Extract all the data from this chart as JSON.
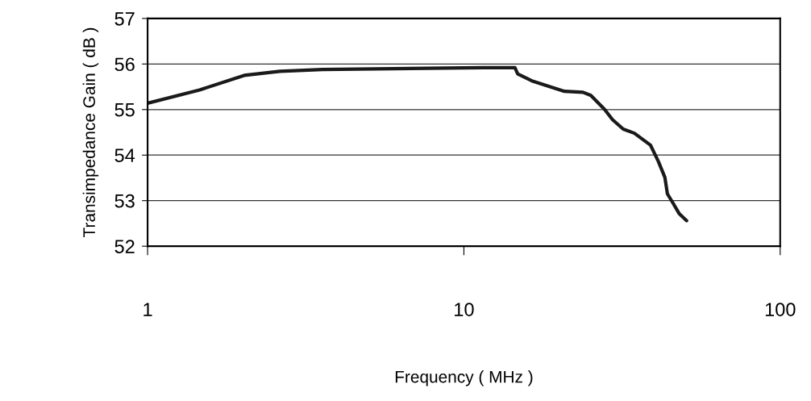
{
  "chart_data": {
    "type": "line",
    "xlabel": "Frequency ( MHz )",
    "ylabel": "Transimpedance Gain ( dB )",
    "log": "x",
    "xlim": [
      1,
      100
    ],
    "xticks": [
      1,
      10,
      100
    ],
    "ylim": [
      52,
      57
    ],
    "yticks": [
      52,
      53,
      54,
      55,
      56,
      57
    ],
    "grid": "y",
    "legend": false,
    "marker": "none",
    "line_style": "solid",
    "x": [
      1,
      1.46,
      2.02,
      2.62,
      3.57,
      11.5,
      14.5,
      14.8,
      16.4,
      20.8,
      23.8,
      25.2,
      27.8,
      29.5,
      31.9,
      34.6,
      38.9,
      41.2,
      43.2,
      44.0,
      45.8,
      48.0,
      50.6
    ],
    "series": [
      {
        "color": "#1a1a1a",
        "values": [
          55.14,
          55.43,
          55.75,
          55.84,
          55.88,
          55.92,
          55.92,
          55.78,
          55.63,
          55.4,
          55.38,
          55.31,
          55.01,
          54.78,
          54.57,
          54.48,
          54.22,
          53.86,
          53.51,
          53.15,
          52.95,
          52.71,
          52.56
        ]
      }
    ]
  }
}
